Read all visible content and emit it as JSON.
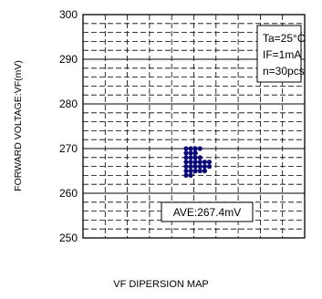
{
  "chart_data": {
    "type": "scatter",
    "title": "",
    "xlabel": "",
    "ylabel": "FORWARD VOLTAGE:VF(mV)",
    "ylim": [
      250,
      300
    ],
    "yticks": [
      250,
      260,
      270,
      280,
      290,
      300
    ],
    "grid": true,
    "conditions": [
      "Ta=25°C",
      "IF=1mA",
      "n=30pcs"
    ],
    "average_label": "AVE:267.4mV",
    "series": [
      {
        "color": "#0a0a80",
        "points": [
          {
            "col": 0,
            "y": 270
          },
          {
            "col": 1,
            "y": 270
          },
          {
            "col": 2,
            "y": 270
          },
          {
            "col": 3,
            "y": 270
          },
          {
            "col": 0,
            "y": 269
          },
          {
            "col": 1,
            "y": 269
          },
          {
            "col": 2,
            "y": 269
          },
          {
            "col": 0,
            "y": 268
          },
          {
            "col": 1,
            "y": 268
          },
          {
            "col": 2,
            "y": 268
          },
          {
            "col": 3,
            "y": 268
          },
          {
            "col": 0,
            "y": 267
          },
          {
            "col": 1,
            "y": 267
          },
          {
            "col": 2,
            "y": 267
          },
          {
            "col": 3,
            "y": 267
          },
          {
            "col": 4,
            "y": 267
          },
          {
            "col": 5,
            "y": 267
          },
          {
            "col": 0,
            "y": 266
          },
          {
            "col": 1,
            "y": 266
          },
          {
            "col": 2,
            "y": 266
          },
          {
            "col": 3,
            "y": 266
          },
          {
            "col": 4,
            "y": 266
          },
          {
            "col": 5,
            "y": 266
          },
          {
            "col": 0,
            "y": 265
          },
          {
            "col": 1,
            "y": 265
          },
          {
            "col": 2,
            "y": 265
          },
          {
            "col": 3,
            "y": 265
          },
          {
            "col": 4,
            "y": 265
          },
          {
            "col": 0,
            "y": 264
          },
          {
            "col": 1,
            "y": 264
          }
        ]
      }
    ]
  },
  "caption": "VF DIPERSION MAP"
}
